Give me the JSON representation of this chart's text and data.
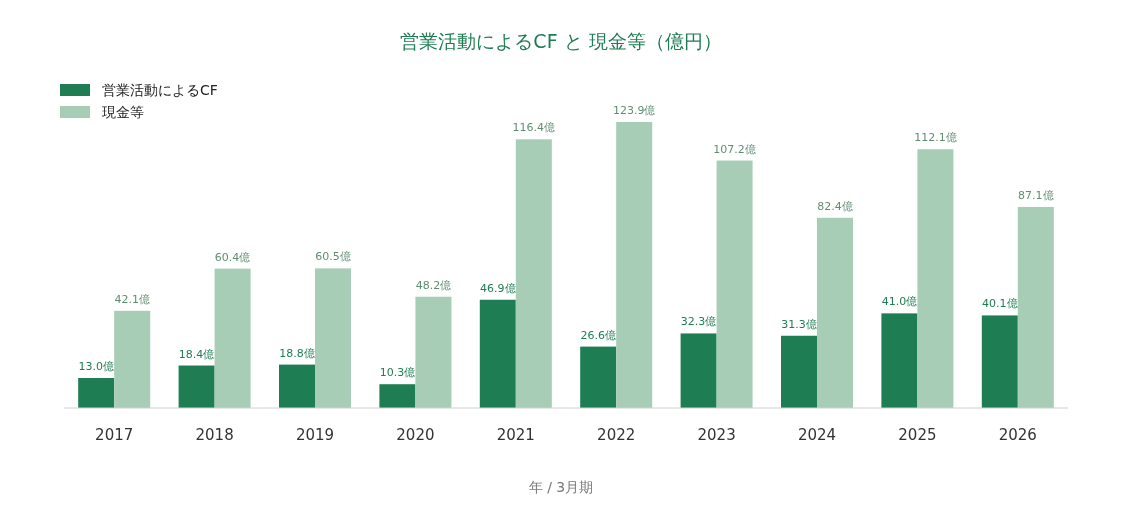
{
  "chart_data": {
    "type": "bar",
    "title": "営業活動によるCF と 現金等（億円）",
    "xlabel": "年 / 3月期",
    "categories": [
      "2017",
      "2018",
      "2019",
      "2020",
      "2021",
      "2022",
      "2023",
      "2024",
      "2025",
      "2026"
    ],
    "legend": "top left",
    "series": [
      {
        "name": "営業活動によるCF",
        "color": "#1e7d52",
        "values": [
          13.0,
          18.4,
          18.8,
          10.3,
          46.9,
          26.6,
          32.3,
          31.3,
          41.0,
          40.1
        ],
        "value_labels": [
          "13.0億",
          "18.4億",
          "18.8億",
          "10.3億",
          "46.9億",
          "26.6億",
          "32.3億",
          "31.3億",
          "41.0億",
          "40.1億"
        ]
      },
      {
        "name": "現金等",
        "color": "#a8cdb6",
        "values": [
          42.1,
          60.4,
          60.5,
          48.2,
          116.4,
          123.9,
          107.2,
          82.4,
          112.1,
          87.1
        ],
        "value_labels": [
          "42.1億",
          "60.4億",
          "60.5億",
          "48.2億",
          "116.4億",
          "123.9億",
          "107.2億",
          "82.4億",
          "112.1億",
          "87.1億"
        ]
      }
    ]
  }
}
